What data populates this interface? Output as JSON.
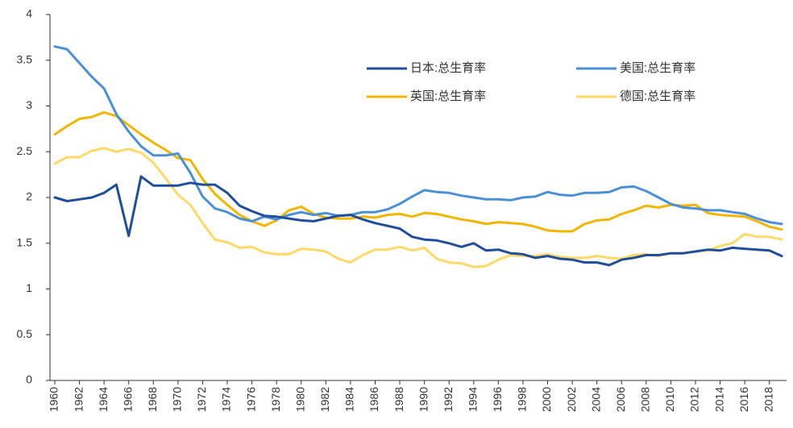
{
  "chart_data": {
    "type": "line",
    "x": [
      1960,
      1961,
      1962,
      1963,
      1964,
      1965,
      1966,
      1967,
      1968,
      1969,
      1970,
      1971,
      1972,
      1973,
      1974,
      1975,
      1976,
      1977,
      1978,
      1979,
      1980,
      1981,
      1982,
      1983,
      1984,
      1985,
      1986,
      1987,
      1988,
      1989,
      1990,
      1991,
      1992,
      1993,
      1994,
      1995,
      1996,
      1997,
      1998,
      1999,
      2000,
      2001,
      2002,
      2003,
      2004,
      2005,
      2006,
      2007,
      2008,
      2009,
      2010,
      2011,
      2012,
      2013,
      2014,
      2015,
      2016,
      2017,
      2018,
      2019
    ],
    "xlim": [
      1960,
      2019
    ],
    "xticks": [
      1960,
      1962,
      1964,
      1966,
      1968,
      1970,
      1972,
      1974,
      1976,
      1978,
      1980,
      1982,
      1984,
      1986,
      1988,
      1990,
      1992,
      1994,
      1996,
      1998,
      2000,
      2002,
      2004,
      2006,
      2008,
      2010,
      2012,
      2014,
      2016,
      2018
    ],
    "ylim": [
      0,
      4
    ],
    "yticks": [
      0,
      0.5,
      1,
      1.5,
      2,
      2.5,
      3,
      3.5,
      4
    ],
    "series": [
      {
        "name": "日本:总生育率",
        "color": "#1f4e9c",
        "values": [
          2.0,
          1.96,
          1.98,
          2.0,
          2.05,
          2.14,
          1.58,
          2.23,
          2.13,
          2.13,
          2.13,
          2.16,
          2.14,
          2.14,
          2.05,
          1.91,
          1.85,
          1.8,
          1.79,
          1.77,
          1.75,
          1.74,
          1.77,
          1.8,
          1.81,
          1.76,
          1.72,
          1.69,
          1.66,
          1.57,
          1.54,
          1.53,
          1.5,
          1.46,
          1.5,
          1.42,
          1.43,
          1.39,
          1.38,
          1.34,
          1.36,
          1.33,
          1.32,
          1.29,
          1.29,
          1.26,
          1.32,
          1.34,
          1.37,
          1.37,
          1.39,
          1.39,
          1.41,
          1.43,
          1.42,
          1.45,
          1.44,
          1.43,
          1.42,
          1.36
        ]
      },
      {
        "name": "美国:总生育率",
        "color": "#4a90d9",
        "values": [
          3.65,
          3.62,
          3.47,
          3.32,
          3.19,
          2.91,
          2.72,
          2.56,
          2.46,
          2.46,
          2.48,
          2.27,
          2.01,
          1.88,
          1.84,
          1.77,
          1.74,
          1.79,
          1.76,
          1.81,
          1.84,
          1.81,
          1.83,
          1.8,
          1.81,
          1.84,
          1.84,
          1.87,
          1.93,
          2.01,
          2.08,
          2.06,
          2.05,
          2.02,
          2.0,
          1.98,
          1.98,
          1.97,
          2.0,
          2.01,
          2.06,
          2.03,
          2.02,
          2.05,
          2.05,
          2.06,
          2.11,
          2.12,
          2.07,
          2.0,
          1.93,
          1.89,
          1.88,
          1.86,
          1.86,
          1.84,
          1.82,
          1.77,
          1.73,
          1.71
        ]
      },
      {
        "name": "英国:总生育率",
        "color": "#f2b600",
        "values": [
          2.69,
          2.78,
          2.86,
          2.88,
          2.93,
          2.89,
          2.79,
          2.69,
          2.6,
          2.52,
          2.43,
          2.41,
          2.2,
          2.04,
          1.92,
          1.81,
          1.74,
          1.69,
          1.75,
          1.86,
          1.9,
          1.82,
          1.78,
          1.77,
          1.77,
          1.79,
          1.78,
          1.81,
          1.82,
          1.79,
          1.83,
          1.82,
          1.79,
          1.76,
          1.74,
          1.71,
          1.73,
          1.72,
          1.71,
          1.68,
          1.64,
          1.63,
          1.63,
          1.71,
          1.75,
          1.76,
          1.82,
          1.86,
          1.91,
          1.89,
          1.92,
          1.91,
          1.92,
          1.83,
          1.81,
          1.8,
          1.79,
          1.74,
          1.68,
          1.65
        ]
      },
      {
        "name": "德国:总生育率",
        "color": "#ffd966",
        "values": [
          2.37,
          2.44,
          2.44,
          2.51,
          2.54,
          2.5,
          2.53,
          2.49,
          2.38,
          2.21,
          2.03,
          1.92,
          1.72,
          1.54,
          1.51,
          1.45,
          1.46,
          1.4,
          1.38,
          1.38,
          1.44,
          1.43,
          1.41,
          1.33,
          1.29,
          1.37,
          1.43,
          1.43,
          1.46,
          1.42,
          1.45,
          1.33,
          1.29,
          1.28,
          1.24,
          1.25,
          1.32,
          1.37,
          1.36,
          1.36,
          1.38,
          1.35,
          1.34,
          1.34,
          1.36,
          1.34,
          1.33,
          1.37,
          1.38,
          1.36,
          1.39,
          1.39,
          1.41,
          1.42,
          1.47,
          1.5,
          1.6,
          1.57,
          1.57,
          1.54
        ]
      }
    ]
  }
}
